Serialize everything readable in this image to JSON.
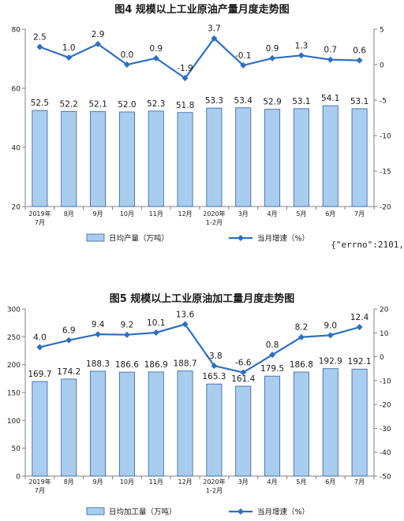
{
  "colors": {
    "bar_fill": "#a9cdee",
    "bar_stroke": "#2f5fa5",
    "line": "#2e6fc0",
    "axis": "#808080",
    "text": "#1a1a1a"
  },
  "stray_text": "{\"errno\":2101,",
  "chart_data": [
    {
      "type": "bar",
      "title": "图4  规模以上工业原油产量月度走势图",
      "categories": [
        "2019年\n7月",
        "8月",
        "9月",
        "10月",
        "11月",
        "12月",
        "2020年\n1-2月",
        "3月",
        "4月",
        "5月",
        "6月",
        "7月"
      ],
      "series": [
        {
          "name": "日均产量（万吨）",
          "type": "bar",
          "axis": "left",
          "values": [
            52.5,
            52.2,
            52.1,
            52.0,
            52.3,
            51.8,
            53.3,
            53.4,
            52.9,
            53.1,
            54.1,
            53.1
          ],
          "labels": [
            "52.5",
            "52.2",
            "52.1",
            "52.0",
            "52.3",
            "51.8",
            "53.3",
            "53.4",
            "52.9",
            "53.1",
            "54.1",
            "53.1"
          ]
        },
        {
          "name": "当月增速（%）",
          "type": "line",
          "axis": "right",
          "values": [
            2.5,
            1.0,
            2.9,
            0.0,
            0.9,
            -1.9,
            3.7,
            -0.1,
            0.9,
            1.3,
            0.7,
            0.6
          ],
          "labels": [
            "2.5",
            "1.0",
            "2.9",
            "0.0",
            "0.9",
            "-1.9",
            "3.7",
            "-0.1",
            "0.9",
            "1.3",
            "0.7",
            "0.6"
          ]
        }
      ],
      "y_left": {
        "min": 20,
        "max": 80,
        "ticks": [
          "20",
          "40",
          "60",
          "80"
        ]
      },
      "y_right": {
        "min": -20,
        "max": 5,
        "ticks": [
          "5",
          "0",
          "-5",
          "-10",
          "-15",
          "-20"
        ]
      },
      "legend": {
        "position": "bottom",
        "bar_label": "日均产量（万吨）",
        "line_label": "当月增速（%）"
      }
    },
    {
      "type": "bar",
      "title": "图5  规模以上工业原油加工量月度走势图",
      "categories": [
        "2019年\n7月",
        "8月",
        "9月",
        "10月",
        "11月",
        "12月",
        "2020年\n1-2月",
        "3月",
        "4月",
        "5月",
        "6月",
        "7月"
      ],
      "series": [
        {
          "name": "日均加工量（万吨）",
          "type": "bar",
          "axis": "left",
          "values": [
            169.7,
            174.2,
            188.3,
            186.6,
            186.9,
            188.7,
            165.3,
            161.4,
            179.5,
            186.8,
            192.9,
            192.1
          ],
          "labels": [
            "169.7",
            "174.2",
            "188.3",
            "186.6",
            "186.9",
            "188.7",
            "165.3",
            "161.4",
            "179.5",
            "186.8",
            "192.9",
            "192.1"
          ]
        },
        {
          "name": "当月增速（%）",
          "type": "line",
          "axis": "right",
          "values": [
            4.0,
            6.9,
            9.4,
            9.2,
            10.1,
            13.6,
            -3.8,
            -6.6,
            0.8,
            8.2,
            9.0,
            12.4
          ],
          "labels": [
            "4.0",
            "6.9",
            "9.4",
            "9.2",
            "10.1",
            "13.6",
            "-3.8",
            "-6.6",
            "0.8",
            "8.2",
            "9.0",
            "12.4"
          ]
        }
      ],
      "y_left": {
        "min": 0,
        "max": 300,
        "ticks": [
          "0",
          "50",
          "100",
          "150",
          "200",
          "250",
          "300"
        ]
      },
      "y_right": {
        "min": -50,
        "max": 20,
        "ticks": [
          "20",
          "10",
          "0",
          "-10",
          "-20",
          "-30",
          "-40",
          "-50"
        ]
      },
      "legend": {
        "position": "bottom",
        "bar_label": "日均加工量（万吨）",
        "line_label": "当月增速（%）"
      }
    }
  ]
}
